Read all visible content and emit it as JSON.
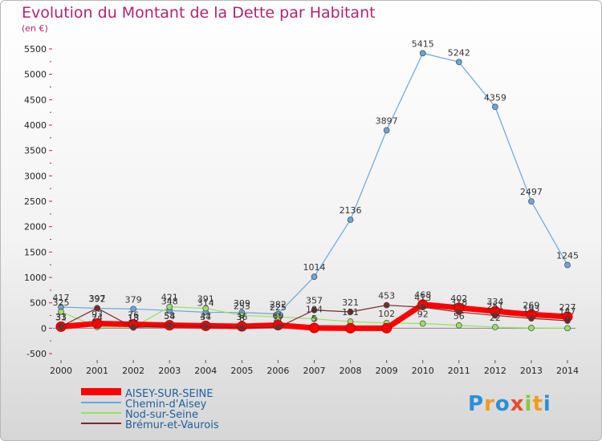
{
  "title": "Evolution du Montant de la Dette par Habitant",
  "unit": "(en €)",
  "logo": {
    "letters": [
      "P",
      "r",
      "o",
      "x",
      "i",
      "t",
      "i"
    ],
    "colors": [
      "#2a8fd6",
      "#f39a1e",
      "#2a8fd6",
      "#e84a2a",
      "#8cc63f",
      "#f39a1e",
      "#2a8fd6"
    ]
  },
  "chart_data": {
    "type": "line",
    "title": "Evolution du Montant de la Dette par Habitant",
    "ylabel": "(en €)",
    "xlabel": "",
    "ylim": [
      -500,
      5500
    ],
    "yticks": [
      -500,
      0,
      500,
      1000,
      1500,
      2000,
      2500,
      3000,
      3500,
      4000,
      4500,
      5000,
      5500
    ],
    "grid": false,
    "legend": "bottom-left",
    "categories": [
      "2000",
      "2001",
      "2002",
      "2003",
      "2004",
      "2005",
      "2006",
      "2007",
      "2008",
      "2009",
      "2010",
      "2011",
      "2012",
      "2013",
      "2014"
    ],
    "series": [
      {
        "name": "AISEY-SUR-SEINE",
        "color": "#ff0000",
        "values": [
          31,
          93,
          76,
          58,
          47,
          36,
          60,
          5,
          0,
          0,
          468,
          402,
          334,
          269,
          227
        ]
      },
      {
        "name": "Chemin-d'Aisey",
        "color": "#6aa6dc",
        "values": [
          417,
          392,
          379,
          348,
          314,
          309,
          282,
          1014,
          2136,
          3897,
          5415,
          5242,
          4359,
          2497,
          1245
        ]
      },
      {
        "name": "Nod-sur-Seine",
        "color": "#99e064",
        "values": [
          325,
          24,
          18,
          421,
          391,
          253,
          225,
          184,
          131,
          102,
          92,
          56,
          22,
          5,
          0
        ]
      },
      {
        "name": "Brémur-et-Vaurois",
        "color": "#7a2a2a",
        "values": [
          33,
          397,
          13,
          54,
          34,
          6,
          17,
          357,
          321,
          453,
          413,
          318,
          251,
          193,
          147
        ]
      }
    ],
    "labels": [
      [
        "31",
        "93",
        "76",
        "58",
        "47",
        "36",
        "60",
        "5",
        "",
        "",
        "468",
        "402",
        "334",
        "269",
        "227"
      ],
      [
        "417",
        "392",
        "379",
        "348",
        "314",
        "309",
        "282",
        "1014",
        "2136",
        "3897",
        "5415",
        "5242",
        "4359",
        "2497",
        "1245"
      ],
      [
        "325",
        "24",
        "18",
        "421",
        "391",
        "253",
        "225",
        "184",
        "131",
        "102",
        "92",
        "56",
        "22",
        "",
        "0"
      ],
      [
        "33",
        "397",
        "13",
        "54",
        "34",
        "6",
        "17",
        "357",
        "321",
        "453",
        "413",
        "318",
        "251",
        "193",
        "147"
      ]
    ]
  }
}
